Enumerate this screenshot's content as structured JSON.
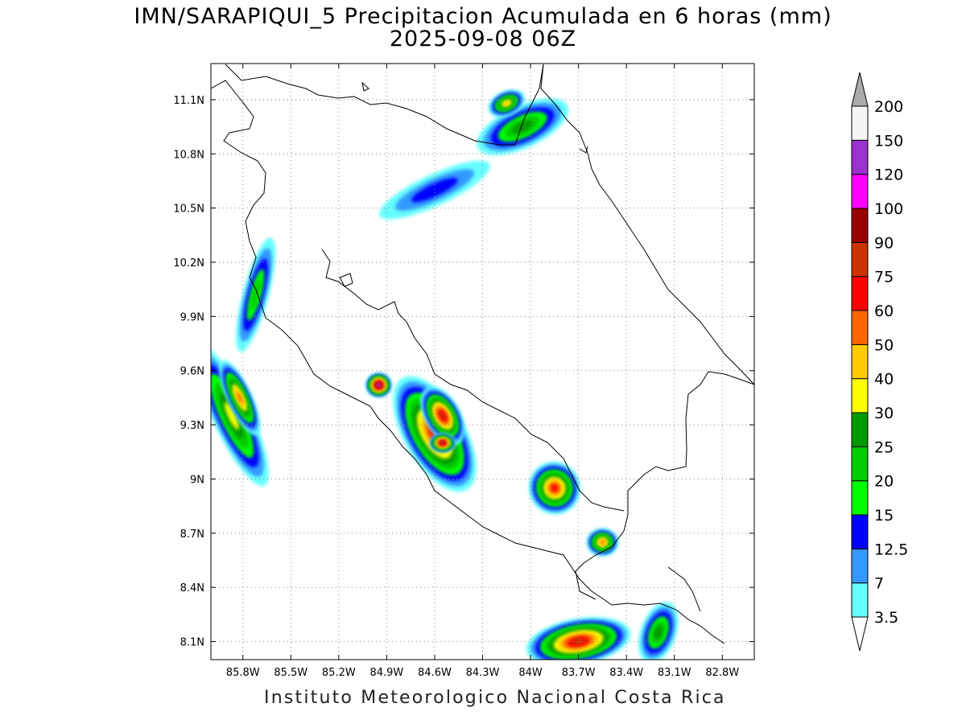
{
  "title_line1": "IMN/SARAPIQUI_5 Precipitacion Acumulada en 6 horas (mm)",
  "title_line2": "2025-09-08 06Z",
  "credit": "Instituto Meteorologico Nacional Costa Rica",
  "map": {
    "lon_range": [
      -86.0,
      -82.6
    ],
    "lat_range": [
      8.0,
      11.3
    ],
    "x_tick_labels": [
      "85.8W",
      "85.5W",
      "85.2W",
      "84.9W",
      "84.6W",
      "84.3W",
      "84W",
      "83.7W",
      "83.4W",
      "83.1W",
      "82.8W"
    ],
    "x_tick_values": [
      -85.8,
      -85.5,
      -85.2,
      -84.9,
      -84.6,
      -84.3,
      -84.0,
      -83.7,
      -83.4,
      -83.1,
      -82.8
    ],
    "y_tick_labels": [
      "11.1N",
      "10.8N",
      "10.5N",
      "10.2N",
      "9.9N",
      "9.6N",
      "9.3N",
      "9N",
      "8.7N",
      "8.4N",
      "8.1N"
    ],
    "y_tick_values": [
      11.1,
      10.8,
      10.5,
      10.2,
      9.9,
      9.6,
      9.3,
      9.0,
      8.7,
      8.4,
      8.1
    ],
    "grid": "dotted"
  },
  "colorbar": {
    "labels": [
      "3.5",
      "7",
      "12.5",
      "15",
      "20",
      "25",
      "30",
      "40",
      "50",
      "60",
      "75",
      "90",
      "100",
      "120",
      "150",
      "200"
    ],
    "colors": [
      "#66ffff",
      "#3399ff",
      "#0000ff",
      "#00ff00",
      "#00cc00",
      "#009900",
      "#ffff00",
      "#ffcc00",
      "#ff6600",
      "#ff0000",
      "#cc3300",
      "#990000",
      "#ff00ff",
      "#9933cc",
      "#f5f5f5"
    ],
    "upper_arrow_color": "#aaaaaa",
    "lower_arrow_color": "#ffffff"
  },
  "precip_cells": [
    {
      "lon": -85.87,
      "lat": 9.35,
      "rx": 0.09,
      "ry": 0.4,
      "rot": -25,
      "level": 6
    },
    {
      "lon": -85.82,
      "lat": 9.45,
      "rx": 0.045,
      "ry": 0.2,
      "rot": -25,
      "level": 8
    },
    {
      "lon": -85.72,
      "lat": 10.02,
      "rx": 0.05,
      "ry": 0.3,
      "rot": 15,
      "level": 4
    },
    {
      "lon": -84.05,
      "lat": 10.95,
      "rx": 0.28,
      "ry": 0.09,
      "rot": -25,
      "level": 5
    },
    {
      "lon": -84.15,
      "lat": 11.08,
      "rx": 0.09,
      "ry": 0.04,
      "rot": -25,
      "level": 7
    },
    {
      "lon": -84.6,
      "lat": 10.6,
      "rx": 0.35,
      "ry": 0.06,
      "rot": -25,
      "level": 2
    },
    {
      "lon": -84.6,
      "lat": 9.25,
      "rx": 0.16,
      "ry": 0.33,
      "rot": -30,
      "level": 9
    },
    {
      "lon": -84.55,
      "lat": 9.35,
      "rx": 0.08,
      "ry": 0.15,
      "rot": -30,
      "level": 10
    },
    {
      "lon": -84.95,
      "lat": 9.52,
      "rx": 0.05,
      "ry": 0.04,
      "rot": 0,
      "level": 13
    },
    {
      "lon": -84.55,
      "lat": 9.2,
      "rx": 0.05,
      "ry": 0.025,
      "rot": 0,
      "level": 12
    },
    {
      "lon": -83.85,
      "lat": 8.95,
      "rx": 0.13,
      "ry": 0.12,
      "rot": -30,
      "level": 9
    },
    {
      "lon": -83.55,
      "lat": 8.65,
      "rx": 0.07,
      "ry": 0.05,
      "rot": 0,
      "level": 8
    },
    {
      "lon": -83.7,
      "lat": 8.1,
      "rx": 0.3,
      "ry": 0.1,
      "rot": -10,
      "level": 10
    },
    {
      "lon": -83.2,
      "lat": 8.15,
      "rx": 0.08,
      "ry": 0.15,
      "rot": 20,
      "level": 5
    }
  ]
}
